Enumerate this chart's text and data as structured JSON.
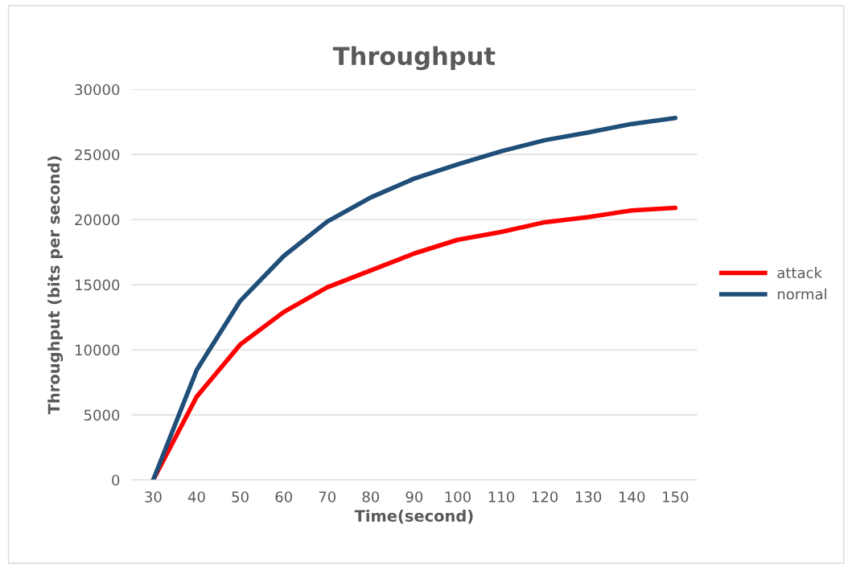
{
  "chart_data": {
    "type": "line",
    "title": "Throughput",
    "xlabel": "Time(second)",
    "ylabel": "Throughput (bits per second)",
    "categories": [
      "30",
      "40",
      "50",
      "60",
      "70",
      "80",
      "90",
      "100",
      "110",
      "120",
      "130",
      "140",
      "150"
    ],
    "series": [
      {
        "name": "attack",
        "color": "#ff0000",
        "values": [
          0,
          6400,
          10400,
          12900,
          14800,
          16100,
          17400,
          18450,
          19050,
          19800,
          20200,
          20700,
          20900
        ]
      },
      {
        "name": "normal",
        "color": "#1f4e79",
        "values": [
          0,
          8450,
          13750,
          17200,
          19850,
          21700,
          23150,
          24250,
          25250,
          26100,
          26700,
          27350,
          27800
        ]
      }
    ],
    "ylim": [
      0,
      30000
    ],
    "yticks": [
      0,
      5000,
      10000,
      15000,
      20000,
      25000,
      30000
    ],
    "grid": "y",
    "legend": "right",
    "marker": "none",
    "line_style": "solid"
  }
}
